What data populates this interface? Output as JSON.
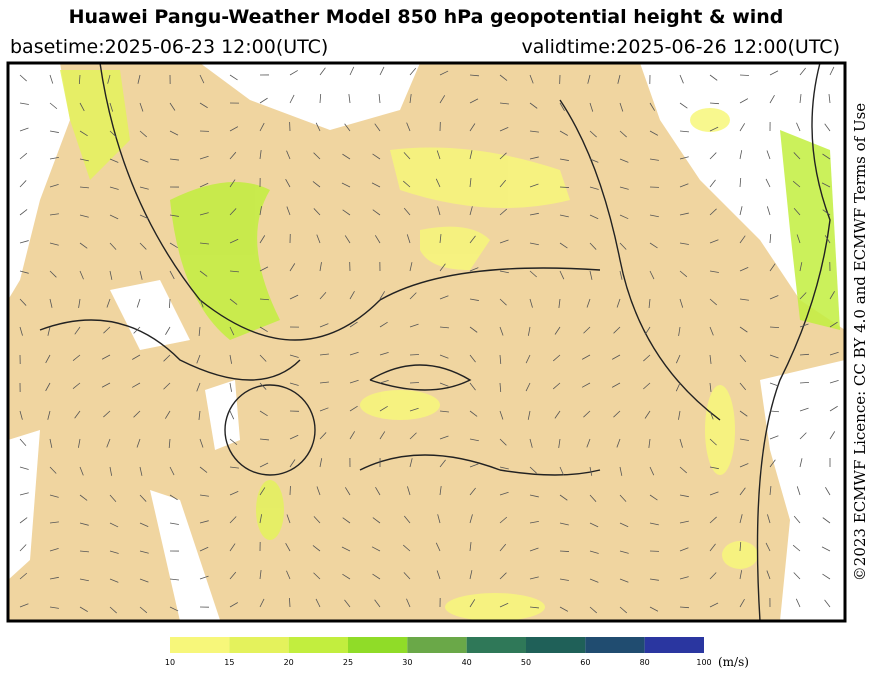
{
  "header": {
    "title": "Huawei Pangu-Weather Model 850 hPa geopotential height & wind",
    "basetime": "basetime:2025-06-23 12:00(UTC)",
    "validtime": "validtime:2025-06-26 12:00(UTC)"
  },
  "licence": "©2023 ECMWF Licence: CC BY 4.0 and ECMWF Terms of Use",
  "colorbar": {
    "ticks": [
      10,
      15,
      20,
      25,
      30,
      40,
      50,
      60,
      80,
      100
    ],
    "colors": [
      "#f7f77a",
      "#e4f25c",
      "#c2ee3e",
      "#90dc28",
      "#6aa848",
      "#2f7858",
      "#1f6058",
      "#204c70",
      "#2a36a0"
    ],
    "unit": "(m/s)"
  }
}
